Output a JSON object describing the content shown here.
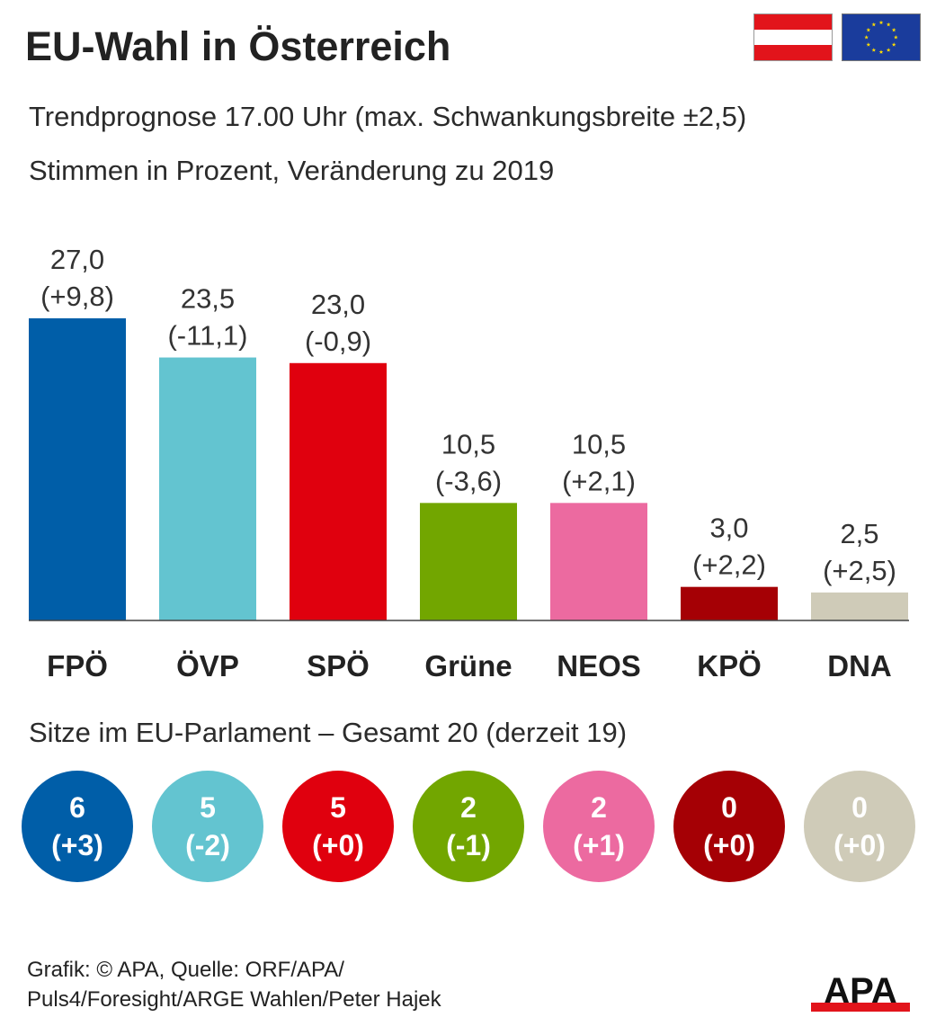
{
  "title": "EU-Wahl in Österreich",
  "subtitle_1": "Trendprognose 17.00 Uhr (max. Schwankungsbreite ±2,5)",
  "subtitle_2": "Stimmen in Prozent, Veränderung zu 2019",
  "flags": {
    "left": "flag-austria-icon",
    "right": "flag-eu-icon"
  },
  "chart_data": {
    "type": "bar",
    "title": "EU-Wahl in Österreich",
    "categories": [
      "FPÖ",
      "ÖVP",
      "SPÖ",
      "Grüne",
      "NEOS",
      "KPÖ",
      "DNA"
    ],
    "values": [
      27.0,
      23.5,
      23.0,
      10.5,
      10.5,
      3.0,
      2.5
    ],
    "value_labels": [
      "27,0",
      "23,5",
      "23,0",
      "10,5",
      "10,5",
      "3,0",
      "2,5"
    ],
    "change_labels": [
      "(+9,8)",
      "(-11,1)",
      "(-0,9)",
      "(-3,6)",
      "(+2,1)",
      "(+2,2)",
      "(+2,5)"
    ],
    "changes": [
      9.8,
      -11.1,
      -0.9,
      -3.6,
      2.1,
      2.2,
      2.5
    ],
    "colors": [
      "#005ea8",
      "#63c4d0",
      "#e0000e",
      "#72a600",
      "#ec6aa0",
      "#a50005",
      "#cfcbb8"
    ],
    "ylim": [
      0,
      27
    ],
    "grid": false,
    "legend": "none"
  },
  "seats": {
    "title": "Sitze im EU-Parlament – Gesamt 20 (derzeit 19)",
    "items": [
      {
        "party": "FPÖ",
        "value": "6",
        "change": "(+3)",
        "color": "#005ea8"
      },
      {
        "party": "ÖVP",
        "value": "5",
        "change": "(-2)",
        "color": "#63c4d0"
      },
      {
        "party": "SPÖ",
        "value": "5",
        "change": "(+0)",
        "color": "#e0000e"
      },
      {
        "party": "Grüne",
        "value": "2",
        "change": "(-1)",
        "color": "#72a600"
      },
      {
        "party": "NEOS",
        "value": "2",
        "change": "(+1)",
        "color": "#ec6aa0"
      },
      {
        "party": "KPÖ",
        "value": "0",
        "change": "(+0)",
        "color": "#a50005"
      },
      {
        "party": "DNA",
        "value": "0",
        "change": "(+0)",
        "color": "#cfcbb8"
      }
    ]
  },
  "source_line_1": "Grafik: © APA, Quelle: ORF/APA/",
  "source_line_2": "Puls4/Foresight/ARGE Wahlen/Peter Hajek",
  "logo_text": "APA"
}
